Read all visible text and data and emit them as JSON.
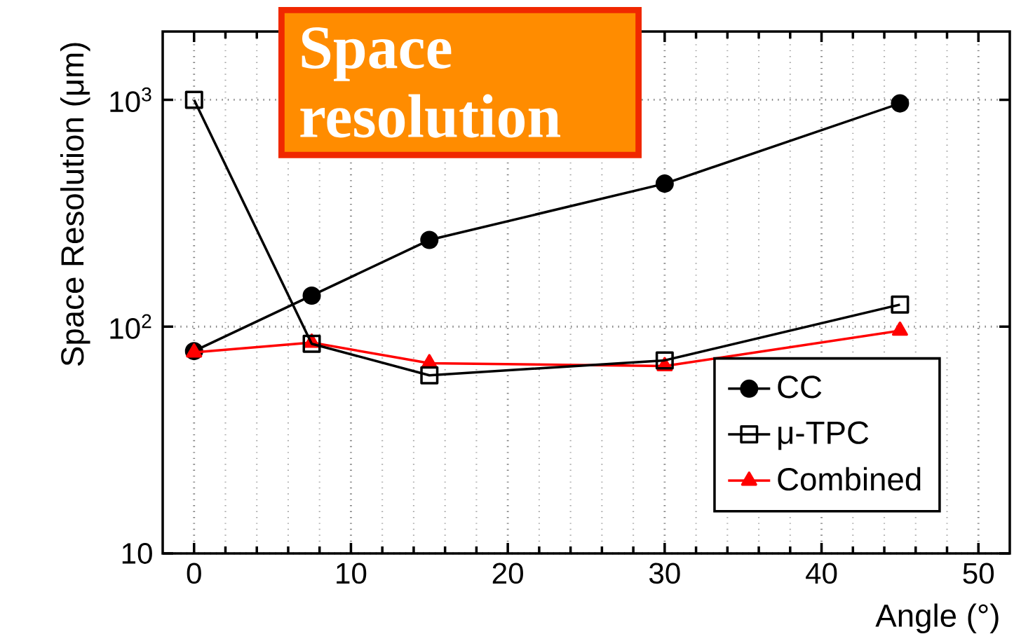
{
  "chart_data": {
    "type": "line",
    "xlabel": "Angle (°)",
    "ylabel": "Space Resolution (μm)",
    "annotations": [
      "Space resolution"
    ],
    "x": [
      0,
      7.5,
      15,
      30,
      45
    ],
    "series": [
      {
        "name": "CC",
        "color": "#000000",
        "marker": "circle",
        "values": [
          78,
          137,
          241,
          427,
          964
        ]
      },
      {
        "name": "μ-TPC",
        "color": "#000000",
        "marker": "square",
        "values": [
          1000,
          84,
          61,
          71,
          125
        ]
      },
      {
        "name": "Combined",
        "color": "#ff0000",
        "marker": "triangle",
        "values": [
          77,
          85,
          69,
          67,
          96
        ]
      }
    ],
    "log": "y",
    "grid": true,
    "legend": "right",
    "xlim": [
      -2,
      52
    ],
    "ylim": [
      10,
      2000
    ],
    "xticks": [
      0,
      10,
      20,
      30,
      40,
      50
    ],
    "yticks": [
      10,
      {
        "value": 100,
        "label": "10$^{2}$"
      },
      {
        "value": 1000,
        "label": "10$^{3}$"
      }
    ]
  }
}
